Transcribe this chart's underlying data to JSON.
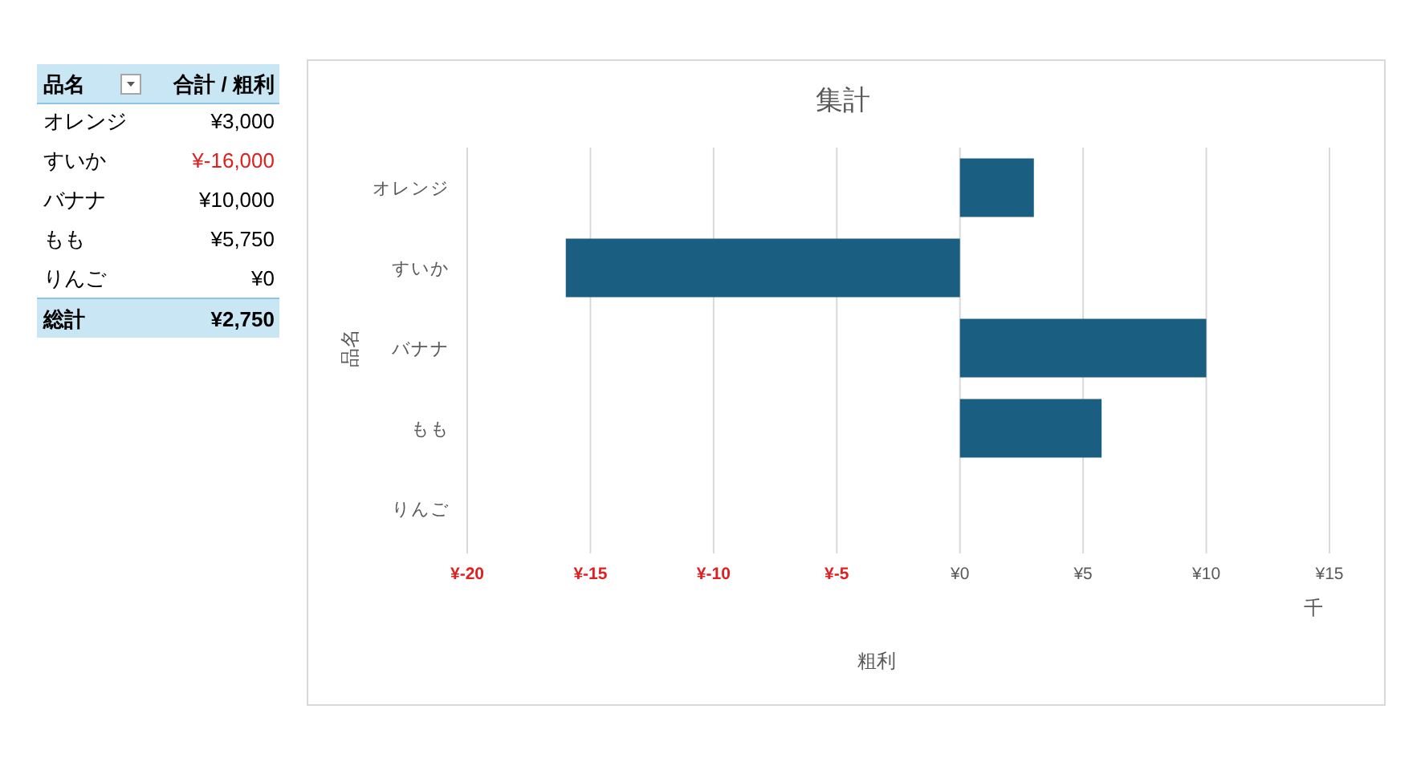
{
  "chart_data": [
    {
      "type": "other",
      "categories": [
        "オレンジ",
        "すいか",
        "バナナ",
        "もも",
        "りんご"
      ],
      "values": [
        3000,
        -16000,
        10000,
        5750,
        0
      ],
      "value_labels": [
        "¥3,000",
        "¥-16,000",
        "¥10,000",
        "¥5,750",
        "¥0"
      ],
      "annotations": [
        "品名",
        "合計 / 粗利",
        "総計",
        "¥2,750"
      ]
    },
    {
      "type": "bar",
      "orientation": "horizontal",
      "title": "集計",
      "xlabel": "粗利",
      "ylabel": "品名",
      "categories": [
        "オレンジ",
        "すいか",
        "バナナ",
        "もも",
        "りんご"
      ],
      "values": [
        3,
        -16,
        10,
        5.75,
        0
      ],
      "color": "#1a5f82",
      "xlim": [
        -20,
        15
      ],
      "xticks": [
        {
          "value": -20,
          "label": "¥-20"
        },
        {
          "value": -15,
          "label": "¥-15"
        },
        {
          "value": -10,
          "label": "¥-10"
        },
        {
          "value": -5,
          "label": "¥-5"
        },
        {
          "value": 0,
          "label": "¥0"
        },
        {
          "value": 5,
          "label": "¥5"
        },
        {
          "value": 10,
          "label": "¥10"
        },
        {
          "value": 15,
          "label": "¥15"
        }
      ],
      "grid": "x",
      "annotations": [
        "千"
      ]
    }
  ]
}
